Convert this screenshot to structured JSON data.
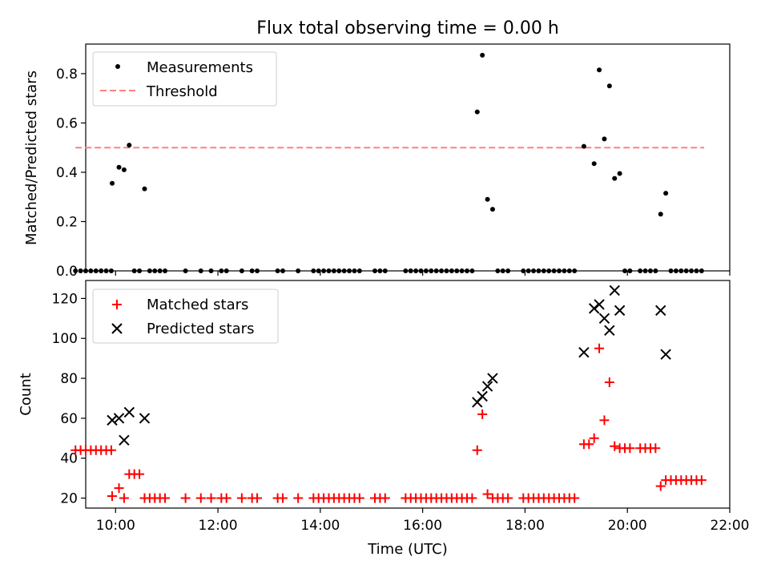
{
  "figure": {
    "title": "Flux total observing time = 0.00 h"
  },
  "chart_data": [
    {
      "type": "scatter",
      "ylabel": "Matched/Predicted stars",
      "xlabel": "",
      "xlim": [
        "09:25",
        "22:00"
      ],
      "ylim": [
        0,
        0.92
      ],
      "yticks": [
        0.0,
        0.2,
        0.4,
        0.6,
        0.8
      ],
      "ytick_labels": [
        "0.0",
        "0.2",
        "0.4",
        "0.6",
        "0.8"
      ],
      "legend": {
        "placement": "upper-left",
        "entries": [
          {
            "label": "Measurements",
            "marker": "dot",
            "color": "#000000"
          },
          {
            "label": "Threshold",
            "marker": "dashed-line",
            "color": "#ff8080"
          }
        ]
      },
      "threshold": {
        "value": 0.5,
        "x_start": "09:13",
        "x_end": "21:30",
        "color": "#ff8080"
      },
      "series": [
        {
          "name": "Measurements",
          "color": "#000000",
          "points": [
            [
              "09:13",
              0
            ],
            [
              "09:19",
              0
            ],
            [
              "09:25",
              0
            ],
            [
              "09:31",
              0
            ],
            [
              "09:37",
              0
            ],
            [
              "09:43",
              0
            ],
            [
              "09:49",
              0
            ],
            [
              "09:55",
              0
            ],
            [
              "09:56",
              0.355
            ],
            [
              "10:04",
              0.42
            ],
            [
              "10:10",
              0.41
            ],
            [
              "10:16",
              0.51
            ],
            [
              "10:22",
              0
            ],
            [
              "10:28",
              0
            ],
            [
              "10:34",
              0.333
            ],
            [
              "10:40",
              0
            ],
            [
              "10:46",
              0
            ],
            [
              "10:52",
              0
            ],
            [
              "10:58",
              0
            ],
            [
              "11:22",
              0
            ],
            [
              "11:40",
              0
            ],
            [
              "11:52",
              0
            ],
            [
              "12:04",
              0
            ],
            [
              "12:10",
              0
            ],
            [
              "12:28",
              0
            ],
            [
              "12:40",
              0
            ],
            [
              "12:46",
              0
            ],
            [
              "13:10",
              0
            ],
            [
              "13:16",
              0
            ],
            [
              "13:34",
              0
            ],
            [
              "13:52",
              0
            ],
            [
              "13:58",
              0
            ],
            [
              "14:04",
              0
            ],
            [
              "14:10",
              0
            ],
            [
              "14:16",
              0
            ],
            [
              "14:22",
              0
            ],
            [
              "14:28",
              0
            ],
            [
              "14:34",
              0
            ],
            [
              "14:40",
              0
            ],
            [
              "14:46",
              0
            ],
            [
              "15:04",
              0
            ],
            [
              "15:10",
              0
            ],
            [
              "15:16",
              0
            ],
            [
              "15:40",
              0
            ],
            [
              "15:46",
              0
            ],
            [
              "15:52",
              0
            ],
            [
              "15:58",
              0
            ],
            [
              "16:04",
              0
            ],
            [
              "16:10",
              0
            ],
            [
              "16:16",
              0
            ],
            [
              "16:22",
              0
            ],
            [
              "16:28",
              0
            ],
            [
              "16:34",
              0
            ],
            [
              "16:40",
              0
            ],
            [
              "16:46",
              0
            ],
            [
              "16:52",
              0
            ],
            [
              "16:58",
              0
            ],
            [
              "17:04",
              0.645
            ],
            [
              "17:10",
              0.875
            ],
            [
              "17:16",
              0.29
            ],
            [
              "17:22",
              0.25
            ],
            [
              "17:28",
              0
            ],
            [
              "17:34",
              0
            ],
            [
              "17:40",
              0
            ],
            [
              "17:58",
              0
            ],
            [
              "18:04",
              0
            ],
            [
              "18:10",
              0
            ],
            [
              "18:16",
              0
            ],
            [
              "18:22",
              0
            ],
            [
              "18:28",
              0
            ],
            [
              "18:34",
              0
            ],
            [
              "18:40",
              0
            ],
            [
              "18:46",
              0
            ],
            [
              "18:52",
              0
            ],
            [
              "18:58",
              0
            ],
            [
              "19:09",
              0.505
            ],
            [
              "19:21",
              0.435
            ],
            [
              "19:27",
              0.815
            ],
            [
              "19:33",
              0.535
            ],
            [
              "19:39",
              0.75
            ],
            [
              "19:45",
              0.375
            ],
            [
              "19:51",
              0.395
            ],
            [
              "19:57",
              0
            ],
            [
              "20:03",
              0
            ],
            [
              "20:15",
              0
            ],
            [
              "20:21",
              0
            ],
            [
              "20:27",
              0
            ],
            [
              "20:33",
              0
            ],
            [
              "20:39",
              0.23
            ],
            [
              "20:45",
              0.315
            ],
            [
              "20:51",
              0
            ],
            [
              "20:57",
              0
            ],
            [
              "21:03",
              0
            ],
            [
              "21:09",
              0
            ],
            [
              "21:15",
              0
            ],
            [
              "21:21",
              0
            ],
            [
              "21:27",
              0
            ]
          ]
        }
      ]
    },
    {
      "type": "scatter",
      "xlabel": "Time (UTC)",
      "ylabel": "Count",
      "xlim": [
        "09:25",
        "22:00"
      ],
      "xticks": [
        "10:00",
        "12:00",
        "14:00",
        "16:00",
        "18:00",
        "20:00",
        "22:00"
      ],
      "ylim": [
        15,
        129
      ],
      "yticks": [
        20,
        40,
        60,
        80,
        100,
        120
      ],
      "ytick_labels": [
        "20",
        "40",
        "60",
        "80",
        "100",
        "120"
      ],
      "legend": {
        "placement": "upper-left",
        "entries": [
          {
            "label": "Matched stars",
            "marker": "plus",
            "color": "#ff0000"
          },
          {
            "label": "Predicted stars",
            "marker": "x",
            "color": "#000000"
          }
        ]
      },
      "series": [
        {
          "name": "Matched stars",
          "marker": "plus",
          "color": "#ff0000",
          "points": [
            [
              "09:13",
              44
            ],
            [
              "09:19",
              44
            ],
            [
              "09:25",
              44
            ],
            [
              "09:31",
              44
            ],
            [
              "09:37",
              44
            ],
            [
              "09:43",
              44
            ],
            [
              "09:49",
              44
            ],
            [
              "09:55",
              44
            ],
            [
              "09:56",
              21
            ],
            [
              "10:04",
              25
            ],
            [
              "10:10",
              20
            ],
            [
              "10:16",
              32
            ],
            [
              "10:22",
              32
            ],
            [
              "10:28",
              32
            ],
            [
              "10:34",
              20
            ],
            [
              "10:40",
              20
            ],
            [
              "10:46",
              20
            ],
            [
              "10:52",
              20
            ],
            [
              "10:58",
              20
            ],
            [
              "11:22",
              20
            ],
            [
              "11:40",
              20
            ],
            [
              "11:52",
              20
            ],
            [
              "12:04",
              20
            ],
            [
              "12:10",
              20
            ],
            [
              "12:28",
              20
            ],
            [
              "12:40",
              20
            ],
            [
              "12:46",
              20
            ],
            [
              "13:10",
              20
            ],
            [
              "13:16",
              20
            ],
            [
              "13:34",
              20
            ],
            [
              "13:52",
              20
            ],
            [
              "13:58",
              20
            ],
            [
              "14:04",
              20
            ],
            [
              "14:10",
              20
            ],
            [
              "14:16",
              20
            ],
            [
              "14:22",
              20
            ],
            [
              "14:28",
              20
            ],
            [
              "14:34",
              20
            ],
            [
              "14:40",
              20
            ],
            [
              "14:46",
              20
            ],
            [
              "15:04",
              20
            ],
            [
              "15:10",
              20
            ],
            [
              "15:16",
              20
            ],
            [
              "15:40",
              20
            ],
            [
              "15:46",
              20
            ],
            [
              "15:52",
              20
            ],
            [
              "15:58",
              20
            ],
            [
              "16:04",
              20
            ],
            [
              "16:10",
              20
            ],
            [
              "16:16",
              20
            ],
            [
              "16:22",
              20
            ],
            [
              "16:28",
              20
            ],
            [
              "16:34",
              20
            ],
            [
              "16:40",
              20
            ],
            [
              "16:46",
              20
            ],
            [
              "16:52",
              20
            ],
            [
              "16:58",
              20
            ],
            [
              "17:04",
              44
            ],
            [
              "17:10",
              62
            ],
            [
              "17:16",
              22
            ],
            [
              "17:22",
              20
            ],
            [
              "17:28",
              20
            ],
            [
              "17:34",
              20
            ],
            [
              "17:40",
              20
            ],
            [
              "17:58",
              20
            ],
            [
              "18:04",
              20
            ],
            [
              "18:10",
              20
            ],
            [
              "18:16",
              20
            ],
            [
              "18:22",
              20
            ],
            [
              "18:28",
              20
            ],
            [
              "18:34",
              20
            ],
            [
              "18:40",
              20
            ],
            [
              "18:46",
              20
            ],
            [
              "18:52",
              20
            ],
            [
              "18:58",
              20
            ],
            [
              "19:09",
              47
            ],
            [
              "19:15",
              47
            ],
            [
              "19:21",
              50
            ],
            [
              "19:27",
              95
            ],
            [
              "19:33",
              59
            ],
            [
              "19:39",
              78
            ],
            [
              "19:45",
              46
            ],
            [
              "19:51",
              45
            ],
            [
              "19:57",
              45
            ],
            [
              "20:03",
              45
            ],
            [
              "20:15",
              45
            ],
            [
              "20:21",
              45
            ],
            [
              "20:27",
              45
            ],
            [
              "20:33",
              45
            ],
            [
              "20:39",
              26
            ],
            [
              "20:45",
              29
            ],
            [
              "20:51",
              29
            ],
            [
              "20:57",
              29
            ],
            [
              "21:03",
              29
            ],
            [
              "21:09",
              29
            ],
            [
              "21:15",
              29
            ],
            [
              "21:21",
              29
            ],
            [
              "21:27",
              29
            ]
          ]
        },
        {
          "name": "Predicted stars",
          "marker": "x",
          "color": "#000000",
          "points": [
            [
              "09:56",
              59
            ],
            [
              "10:04",
              60
            ],
            [
              "10:10",
              49
            ],
            [
              "10:16",
              63
            ],
            [
              "10:34",
              60
            ],
            [
              "17:04",
              68
            ],
            [
              "17:10",
              71
            ],
            [
              "17:16",
              76
            ],
            [
              "17:22",
              80
            ],
            [
              "19:09",
              93
            ],
            [
              "19:21",
              115
            ],
            [
              "19:27",
              117
            ],
            [
              "19:33",
              110
            ],
            [
              "19:39",
              104
            ],
            [
              "19:45",
              124
            ],
            [
              "19:51",
              114
            ],
            [
              "20:39",
              114
            ],
            [
              "20:45",
              92
            ]
          ]
        }
      ]
    }
  ]
}
